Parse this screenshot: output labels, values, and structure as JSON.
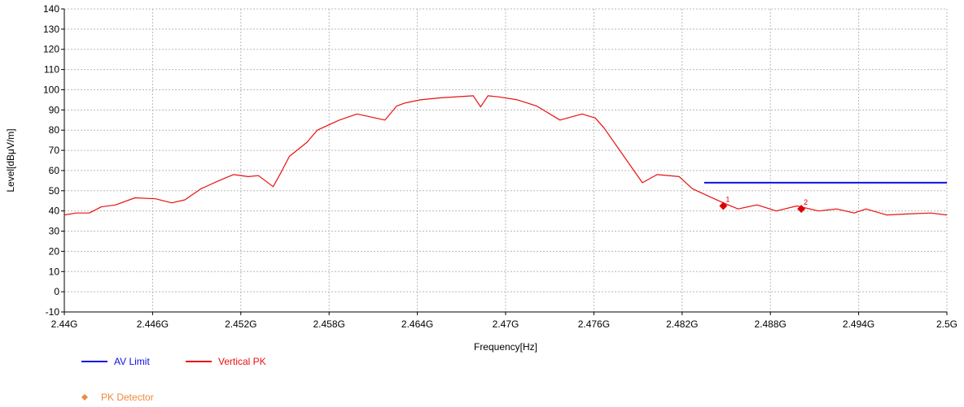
{
  "chart_data": {
    "type": "line",
    "ylabel": "Level[dBμV/m]",
    "xlabel": "Frequency[Hz]",
    "xlim": [
      2.44,
      2.5
    ],
    "ylim": [
      -10,
      140
    ],
    "x_tick_values": [
      2.44,
      2.446,
      2.452,
      2.458,
      2.464,
      2.47,
      2.476,
      2.482,
      2.488,
      2.494,
      2.5
    ],
    "x_tick_labels": [
      "2.44G",
      "2.446G",
      "2.452G",
      "2.458G",
      "2.464G",
      "2.47G",
      "2.476G",
      "2.482G",
      "2.488G",
      "2.494G",
      "2.5G"
    ],
    "y_ticks": [
      -10,
      0,
      10,
      20,
      30,
      40,
      50,
      60,
      70,
      80,
      90,
      100,
      110,
      120,
      130,
      140
    ],
    "grid": true,
    "legend_position": "bottom-left",
    "series": [
      {
        "name": "AV Limit",
        "color": "#1010e0",
        "x": [
          2.4835,
          2.5
        ],
        "y": [
          54,
          54
        ]
      },
      {
        "name": "Vertical PK",
        "color": "#e81010",
        "x": [
          2.44,
          2.4408,
          2.4417,
          2.4425,
          2.4435,
          2.4448,
          2.4462,
          2.4473,
          2.4482,
          2.4493,
          2.4505,
          2.4515,
          2.4525,
          2.4532,
          2.4542,
          2.4548,
          2.4553,
          2.4565,
          2.4572,
          2.4587,
          2.4599,
          2.4618,
          2.4626,
          2.4632,
          2.4642,
          2.4656,
          2.4678,
          2.4683,
          2.4688,
          2.4695,
          2.4708,
          2.4721,
          2.4737,
          2.4752,
          2.4761,
          2.4767,
          2.4793,
          2.4803,
          2.4818,
          2.4827,
          2.4839,
          2.4848,
          2.4858,
          2.4871,
          2.4884,
          2.4898,
          2.4913,
          2.4925,
          2.4937,
          2.4945,
          2.4959,
          2.4973,
          2.4989,
          2.5
        ],
        "y": [
          38,
          39,
          39,
          42,
          43,
          46.5,
          46,
          44,
          45.5,
          51,
          55,
          58,
          57,
          57.5,
          52,
          60,
          67,
          74,
          80,
          85,
          88,
          85,
          92,
          93.5,
          95,
          96,
          97,
          91.5,
          97,
          96.5,
          95,
          92,
          85,
          88,
          86,
          81,
          54,
          58,
          57,
          51,
          47,
          44,
          41,
          43,
          40,
          42.5,
          40,
          41,
          39,
          41,
          38,
          38.5,
          39,
          38
        ]
      }
    ],
    "markers": {
      "legend_label": "PK Detector",
      "color": "#f08a40",
      "points": [
        {
          "label": "1",
          "x": 2.4848,
          "y": 42.5
        },
        {
          "label": "2",
          "x": 2.4901,
          "y": 41
        }
      ]
    }
  }
}
